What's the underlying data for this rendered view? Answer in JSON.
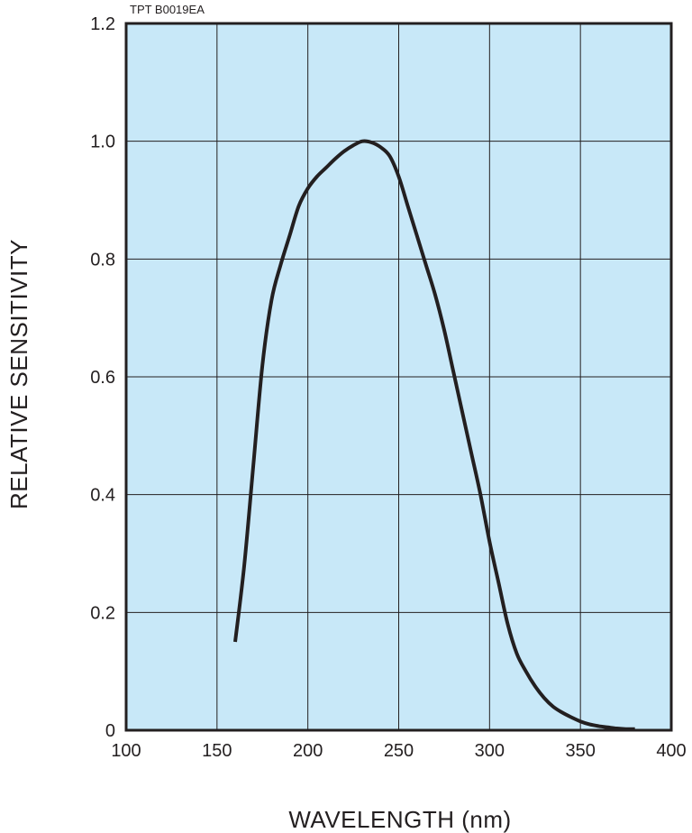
{
  "chart_data": {
    "type": "line",
    "code": "TPT B0019EA",
    "xlabel": "WAVELENGTH (nm)",
    "ylabel": "RELATIVE SENSITIVITY",
    "xlim": [
      100,
      400
    ],
    "ylim": [
      0,
      1.2
    ],
    "xticks": [
      "100",
      "150",
      "200",
      "250",
      "300",
      "350",
      "400"
    ],
    "yticks": [
      "0",
      "0.2",
      "0.4",
      "0.6",
      "0.8",
      "1.0",
      "1.2"
    ],
    "grid": true,
    "plot_background": "#c8e8f8",
    "line_color": "#231f20",
    "series": [
      {
        "x": [
          160,
          165,
          170,
          175,
          180,
          185,
          190,
          195,
          200,
          205,
          210,
          215,
          220,
          225,
          230,
          235,
          240,
          245,
          250,
          255,
          260,
          265,
          270,
          275,
          280,
          285,
          290,
          295,
          300,
          305,
          310,
          315,
          320,
          325,
          330,
          335,
          340,
          345,
          350,
          355,
          360,
          365,
          370,
          375,
          380
        ],
        "y": [
          0.15,
          0.28,
          0.45,
          0.62,
          0.73,
          0.79,
          0.84,
          0.89,
          0.92,
          0.94,
          0.955,
          0.97,
          0.983,
          0.993,
          1.0,
          0.998,
          0.99,
          0.975,
          0.94,
          0.89,
          0.84,
          0.79,
          0.74,
          0.68,
          0.61,
          0.54,
          0.47,
          0.4,
          0.32,
          0.25,
          0.18,
          0.13,
          0.1,
          0.075,
          0.055,
          0.04,
          0.03,
          0.022,
          0.015,
          0.01,
          0.007,
          0.005,
          0.003,
          0.002,
          0.002
        ]
      }
    ]
  }
}
